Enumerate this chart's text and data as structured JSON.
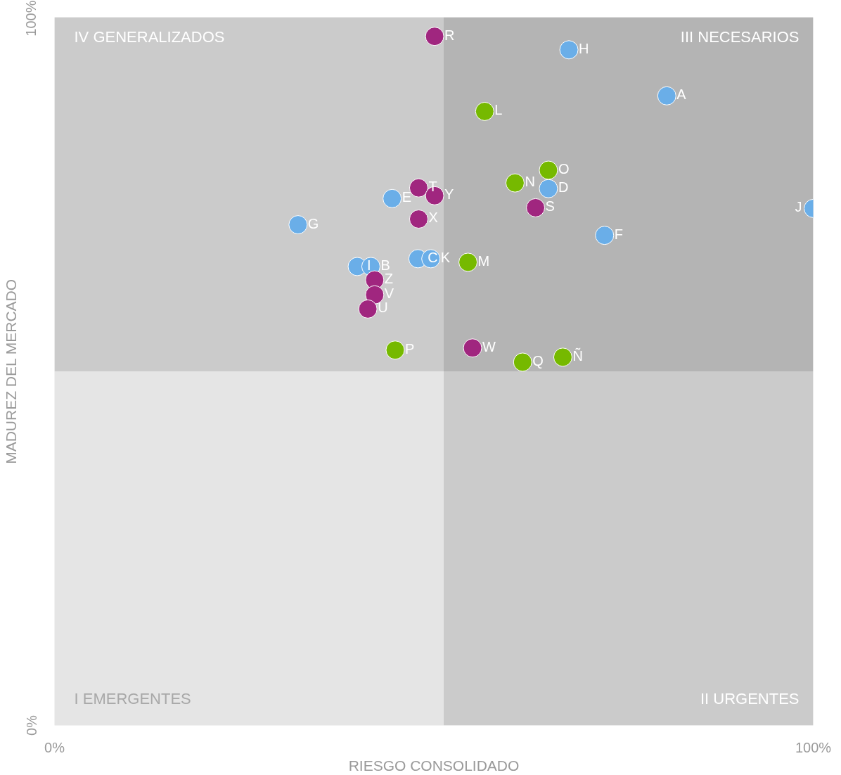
{
  "chart_data": {
    "type": "scatter",
    "xlabel": "RIESGO CONSOLIDADO",
    "ylabel": "MADUREZ DEL MERCADO",
    "xlim": [
      0,
      100
    ],
    "ylim": [
      0,
      100
    ],
    "xticks": [
      {
        "value": 0,
        "label": "0%"
      },
      {
        "value": 100,
        "label": "100%"
      }
    ],
    "yticks": [
      {
        "value": 0,
        "label": "0%"
      },
      {
        "value": 100,
        "label": "100%"
      }
    ],
    "marker": "circle",
    "bands": [
      {
        "axis": "x",
        "from": 51.3,
        "to": 100,
        "color": "#000000"
      },
      {
        "axis": "y",
        "from": 50,
        "to": 100,
        "color": "#000000"
      }
    ],
    "series": [
      {
        "color": "#6aaee8",
        "x": [
          67.8,
          80.7,
          65.1,
          44.5,
          32.1,
          100,
          72.5,
          47.9,
          49.6,
          39.9,
          41.7
        ],
        "values": [
          95.4,
          88.9,
          75.8,
          74.4,
          70.7,
          73.0,
          69.2,
          65.9,
          65.9,
          64.8,
          64.8
        ]
      },
      {
        "color": "#76b900",
        "x": [
          56.7,
          65.1,
          60.7,
          54.5,
          44.9,
          61.7,
          67.0
        ],
        "values": [
          86.7,
          78.4,
          76.6,
          65.4,
          53.0,
          51.3,
          52.0
        ]
      },
      {
        "color": "#a0267f",
        "x": [
          50.1,
          48.0,
          50.1,
          63.4,
          48.0,
          42.2,
          42.2,
          41.3,
          55.1
        ],
        "values": [
          97.3,
          75.9,
          74.8,
          73.1,
          71.5,
          62.9,
          60.8,
          58.8,
          53.3
        ]
      }
    ],
    "annotations": [
      "IV GENERALIZADOS",
      "III NECESARIOS",
      "I EMERGENTES",
      "II URGENTES",
      {
        "text": "H",
        "x": 67.8,
        "y": 95.4
      },
      {
        "text": "A",
        "x": 80.7,
        "y": 88.9
      },
      {
        "text": "D",
        "x": 65.1,
        "y": 75.8
      },
      {
        "text": "E",
        "x": 44.5,
        "y": 74.4
      },
      {
        "text": "G",
        "x": 32.1,
        "y": 70.7
      },
      {
        "text": "J",
        "x": 100,
        "y": 73.0
      },
      {
        "text": "F",
        "x": 72.5,
        "y": 69.2
      },
      {
        "text": "C",
        "x": 47.9,
        "y": 65.9
      },
      {
        "text": "K",
        "x": 49.6,
        "y": 65.9
      },
      {
        "text": "I",
        "x": 39.9,
        "y": 64.8
      },
      {
        "text": "B",
        "x": 41.7,
        "y": 64.8
      },
      {
        "text": "L",
        "x": 56.7,
        "y": 86.7
      },
      {
        "text": "O",
        "x": 65.1,
        "y": 78.4
      },
      {
        "text": "N",
        "x": 60.7,
        "y": 76.6
      },
      {
        "text": "M",
        "x": 54.5,
        "y": 65.4
      },
      {
        "text": "P",
        "x": 44.9,
        "y": 53.0
      },
      {
        "text": "Q",
        "x": 61.7,
        "y": 51.3
      },
      {
        "text": "Ñ",
        "x": 67.0,
        "y": 52.0
      },
      {
        "text": "R",
        "x": 50.1,
        "y": 97.3
      },
      {
        "text": "T",
        "x": 48.0,
        "y": 75.9
      },
      {
        "text": "Y",
        "x": 50.1,
        "y": 74.8
      },
      {
        "text": "S",
        "x": 63.4,
        "y": 73.1
      },
      {
        "text": "X",
        "x": 48.0,
        "y": 71.5
      },
      {
        "text": "Z",
        "x": 42.2,
        "y": 62.9
      },
      {
        "text": "V",
        "x": 42.2,
        "y": 60.8
      },
      {
        "text": "U",
        "x": 41.3,
        "y": 58.8
      },
      {
        "text": "W",
        "x": 55.1,
        "y": 53.3
      }
    ]
  }
}
